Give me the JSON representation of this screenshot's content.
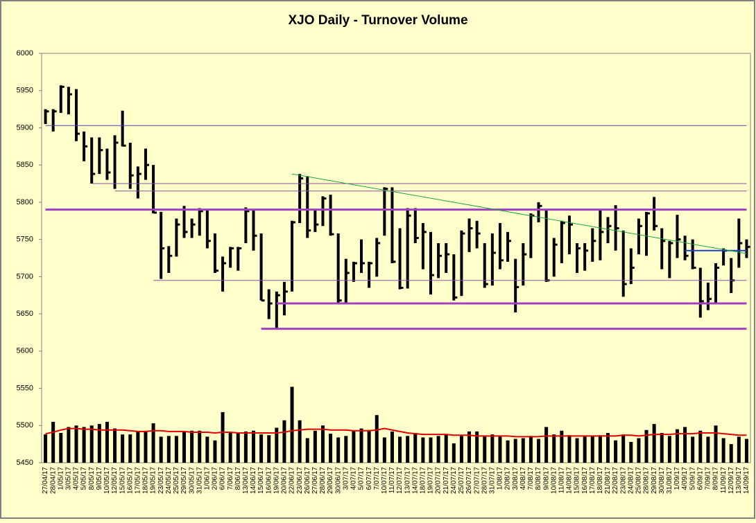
{
  "chart_data": {
    "type": "ohlc",
    "title": "XJO Daily - Turnover Volume",
    "categories": [
      "27/04/17",
      "28/04/17",
      "1/05/17",
      "3/05/17",
      "4/05/17",
      "5/05/17",
      "8/05/17",
      "9/05/17",
      "10/05/17",
      "12/05/17",
      "15/05/17",
      "16/05/17",
      "17/05/17",
      "18/05/17",
      "19/05/17",
      "23/05/17",
      "24/05/17",
      "25/05/17",
      "29/05/17",
      "30/05/17",
      "31/05/17",
      "1/06/17",
      "2/06/17",
      "6/06/17",
      "7/06/17",
      "8/06/17",
      "13/06/17",
      "14/06/17",
      "15/06/17",
      "16/06/17",
      "19/06/17",
      "20/06/17",
      "22/06/17",
      "23/06/17",
      "26/06/17",
      "27/06/17",
      "28/06/17",
      "29/06/17",
      "30/06/17",
      "3/07/17",
      "4/07/17",
      "5/07/17",
      "6/07/17",
      "7/07/17",
      "10/07/17",
      "11/07/17",
      "12/07/17",
      "13/07/17",
      "14/07/17",
      "18/07/17",
      "19/07/17",
      "20/07/17",
      "21/07/17",
      "24/07/17",
      "25/07/17",
      "26/07/17",
      "27/07/17",
      "28/07/17",
      "31/07/17",
      "1/08/17",
      "2/08/17",
      "3/08/17",
      "4/08/17",
      "7/08/17",
      "8/08/17",
      "9/08/17",
      "10/08/17",
      "11/08/17",
      "14/08/17",
      "15/08/17",
      "16/08/17",
      "17/08/17",
      "18/08/17",
      "21/08/17",
      "22/08/17",
      "23/08/17",
      "24/08/17",
      "25/08/17",
      "28/08/17",
      "29/08/17",
      "30/08/17",
      "31/08/17",
      "1/09/17",
      "4/09/17",
      "5/09/17",
      "6/09/17",
      "7/09/17",
      "8/09/17",
      "11/09/17",
      "12/09/17",
      "13/09/17",
      "14/09/17"
    ],
    "high": [
      5925,
      5925,
      5957,
      5955,
      5952,
      5895,
      5887,
      5887,
      5872,
      5890,
      5923,
      5880,
      5848,
      5872,
      5850,
      5787,
      5741,
      5778,
      5795,
      5778,
      5792,
      5790,
      5758,
      5727,
      5740,
      5740,
      5793,
      5790,
      5758,
      5683,
      5680,
      5693,
      5775,
      5838,
      5835,
      5790,
      5808,
      5810,
      5758,
      5724,
      5720,
      5750,
      5720,
      5752,
      5820,
      5820,
      5765,
      5792,
      5792,
      5772,
      5760,
      5745,
      5745,
      5730,
      5762,
      5778,
      5775,
      5745,
      5758,
      5772,
      5760,
      5724,
      5745,
      5785,
      5800,
      5790,
      5752,
      5775,
      5782,
      5745,
      5745,
      5765,
      5790,
      5780,
      5796,
      5762,
      5738,
      5778,
      5787,
      5807,
      5765,
      5748,
      5783,
      5755,
      5750,
      5712,
      5692,
      5718,
      5738,
      5725,
      5778,
      5750
    ],
    "low": [
      5905,
      5895,
      5920,
      5918,
      5882,
      5855,
      5825,
      5838,
      5830,
      5818,
      5875,
      5818,
      5805,
      5830,
      5785,
      5697,
      5705,
      5727,
      5752,
      5752,
      5755,
      5738,
      5705,
      5680,
      5712,
      5708,
      5745,
      5735,
      5668,
      5643,
      5630,
      5648,
      5680,
      5772,
      5752,
      5760,
      5768,
      5755,
      5665,
      5665,
      5693,
      5705,
      5685,
      5700,
      5755,
      5718,
      5683,
      5684,
      5745,
      5710,
      5676,
      5698,
      5705,
      5668,
      5674,
      5733,
      5738,
      5685,
      5688,
      5710,
      5720,
      5652,
      5688,
      5725,
      5773,
      5693,
      5700,
      5718,
      5730,
      5705,
      5708,
      5720,
      5722,
      5745,
      5735,
      5673,
      5690,
      5730,
      5728,
      5762,
      5710,
      5698,
      5725,
      5722,
      5710,
      5645,
      5655,
      5665,
      5715,
      5678,
      5712,
      5725
    ],
    "close": [
      5922,
      5922,
      5955,
      5945,
      5892,
      5875,
      5838,
      5870,
      5840,
      5880,
      5876,
      5836,
      5838,
      5850,
      5786,
      5738,
      5728,
      5770,
      5760,
      5770,
      5788,
      5748,
      5708,
      5718,
      5738,
      5738,
      5788,
      5755,
      5668,
      5664,
      5675,
      5680,
      5773,
      5832,
      5762,
      5770,
      5805,
      5757,
      5668,
      5705,
      5718,
      5718,
      5718,
      5745,
      5818,
      5720,
      5685,
      5782,
      5752,
      5760,
      5702,
      5728,
      5730,
      5672,
      5758,
      5765,
      5758,
      5690,
      5732,
      5722,
      5748,
      5686,
      5730,
      5782,
      5795,
      5695,
      5743,
      5772,
      5770,
      5738,
      5735,
      5748,
      5760,
      5768,
      5765,
      5690,
      5712,
      5768,
      5785,
      5768,
      5748,
      5745,
      5750,
      5728,
      5712,
      5667,
      5670,
      5712,
      5735,
      5695,
      5745,
      5740
    ],
    "volume": [
      5488,
      5505,
      5490,
      5498,
      5500,
      5498,
      5500,
      5502,
      5505,
      5496,
      5488,
      5488,
      5492,
      5492,
      5503,
      5485,
      5486,
      5486,
      5492,
      5493,
      5493,
      5485,
      5480,
      5518,
      5490,
      5490,
      5492,
      5493,
      5488,
      5487,
      5497,
      5507,
      5552,
      5507,
      5483,
      5493,
      5500,
      5489,
      5484,
      5486,
      5493,
      5496,
      5494,
      5514,
      5484,
      5492,
      5485,
      5486,
      5490,
      5484,
      5484,
      5486,
      5488,
      5476,
      5486,
      5492,
      5492,
      5485,
      5488,
      5485,
      5480,
      5482,
      5483,
      5486,
      5482,
      5498,
      5488,
      5493,
      5487,
      5483,
      5485,
      5486,
      5487,
      5490,
      5480,
      5488,
      5478,
      5483,
      5494,
      5502,
      5490,
      5486,
      5495,
      5498,
      5485,
      5493,
      5485,
      5500,
      5483,
      5475,
      5485,
      5482
    ],
    "ma": [
      5489,
      5491,
      5494,
      5496,
      5496,
      5495,
      5495,
      5494,
      5494,
      5494,
      5494,
      5493,
      5492,
      5492,
      5493,
      5493,
      5492,
      5492,
      5492,
      5491,
      5491,
      5491,
      5490,
      5491,
      5491,
      5490,
      5490,
      5490,
      5490,
      5490,
      5490,
      5491,
      5493,
      5494,
      5495,
      5495,
      5495,
      5494,
      5494,
      5494,
      5493,
      5493,
      5493,
      5494,
      5496,
      5494,
      5492,
      5490,
      5489,
      5488,
      5488,
      5488,
      5488,
      5487,
      5487,
      5487,
      5486,
      5486,
      5486,
      5486,
      5486,
      5485,
      5485,
      5485,
      5485,
      5486,
      5486,
      5486,
      5486,
      5486,
      5486,
      5486,
      5486,
      5486,
      5486,
      5487,
      5487,
      5486,
      5487,
      5488,
      5488,
      5488,
      5489,
      5489,
      5489,
      5490,
      5490,
      5490,
      5489,
      5488,
      5487,
      5487
    ],
    "bar_color": "#000000",
    "ma_color": "#e00000",
    "ylim": [
      5450,
      6000
    ],
    "yticks": [
      5450,
      5500,
      5550,
      5600,
      5650,
      5700,
      5750,
      5800,
      5850,
      5900,
      5950,
      6000
    ],
    "annotations": [
      {
        "x": [
          "27/04/17",
          "14/09/17"
        ],
        "y": [
          5903,
          5903
        ],
        "color": "#4a4ab0",
        "width": 1
      },
      {
        "x": [
          "8/05/17",
          "14/09/17"
        ],
        "y": [
          5825,
          5825
        ],
        "color": "#9050a0",
        "width": 1
      },
      {
        "x": [
          "12/05/17",
          "14/09/17"
        ],
        "y": [
          5815,
          5815
        ],
        "color": "#9050a0",
        "width": 1
      },
      {
        "x": [
          "27/04/17",
          "14/09/17"
        ],
        "y": [
          5790,
          5790
        ],
        "color": "#a040c0",
        "width": 3
      },
      {
        "x": [
          "19/05/17",
          "14/09/17"
        ],
        "y": [
          5695,
          5695
        ],
        "color": "#9050a0",
        "width": 1
      },
      {
        "x": [
          "19/06/17",
          "14/09/17"
        ],
        "y": [
          5664,
          5664
        ],
        "color": "#a040c0",
        "width": 3
      },
      {
        "x": [
          "15/06/17",
          "14/09/17"
        ],
        "y": [
          5630,
          5630
        ],
        "color": "#a040c0",
        "width": 3
      },
      {
        "x": [
          "4/09/17",
          "14/09/17"
        ],
        "y": [
          5735,
          5735
        ],
        "color": "#2040c0",
        "width": 2
      },
      {
        "x": [
          "22/06/17",
          "14/09/17"
        ],
        "y": [
          5838,
          5731
        ],
        "color": "#20a040",
        "width": 1
      }
    ]
  }
}
